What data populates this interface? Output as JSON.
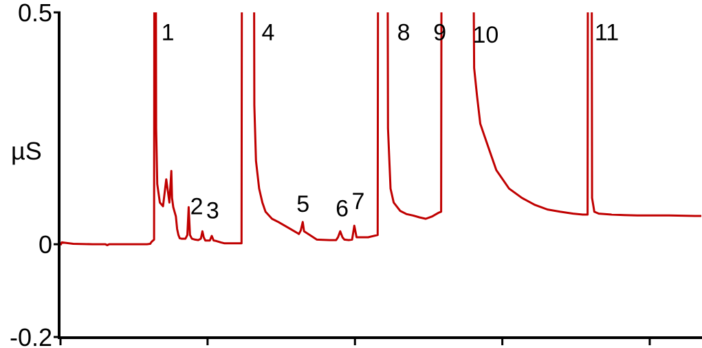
{
  "chart_data": {
    "type": "line",
    "title": "",
    "xlabel": "",
    "ylabel": "µS",
    "ylim": [
      -0.2,
      0.5
    ],
    "xlim": [
      0,
      1
    ],
    "y_ticks": [
      {
        "value": 0.5,
        "label": "0.5"
      },
      {
        "value": 0,
        "label": "0"
      },
      {
        "value": -0.2,
        "label": "-0.2"
      }
    ],
    "x_ticks": [
      0.0,
      0.2295,
      0.4595,
      0.6895,
      0.9195
    ],
    "grid": false,
    "legend": "none",
    "line_color": "#C00000",
    "axis_color": "#000000",
    "series": [
      {
        "x": [
          0.0,
          0.002,
          0.008,
          0.02,
          0.05,
          0.07,
          0.073,
          0.076,
          0.09,
          0.11,
          0.135,
          0.14,
          0.142,
          0.146,
          0.1465,
          0.1488,
          0.1493,
          0.151,
          0.155,
          0.16,
          0.165,
          0.17,
          0.173,
          0.174,
          0.176,
          0.18,
          0.182,
          0.184,
          0.186,
          0.189,
          0.195,
          0.198,
          0.2,
          0.202,
          0.205,
          0.21,
          0.215,
          0.219,
          0.2215,
          0.2235,
          0.226,
          0.233,
          0.236,
          0.239,
          0.243,
          0.248,
          0.25,
          0.256,
          0.2825,
          0.283,
          0.302,
          0.3025,
          0.305,
          0.31,
          0.315,
          0.32,
          0.33,
          0.34,
          0.35,
          0.36,
          0.365,
          0.37,
          0.372,
          0.375,
          0.378,
          0.38,
          0.4,
          0.42,
          0.43,
          0.433,
          0.4365,
          0.44,
          0.443,
          0.45,
          0.455,
          0.4585,
          0.462,
          0.48,
          0.495,
          0.4955,
          0.5105,
          0.511,
          0.515,
          0.52,
          0.53,
          0.54,
          0.55,
          0.56,
          0.57,
          0.58,
          0.59,
          0.594,
          0.5945,
          0.6445,
          0.6455,
          0.65,
          0.655,
          0.66,
          0.67,
          0.68,
          0.7,
          0.72,
          0.74,
          0.76,
          0.78,
          0.8,
          0.815,
          0.8225,
          0.823,
          0.829,
          0.8295,
          0.833,
          0.84,
          0.86,
          0.88,
          0.9,
          0.95,
          0.99,
          1.0
        ],
        "y": [
          -0.002,
          0.004,
          0.003,
          0.001,
          0.0,
          0.0,
          -0.002,
          0.0,
          0.0,
          0.0,
          0.0,
          0.001,
          0.005,
          0.01,
          0.6,
          0.6,
          0.25,
          0.13,
          0.09,
          0.082,
          0.14,
          0.09,
          0.158,
          0.1,
          0.08,
          0.06,
          0.033,
          0.02,
          0.013,
          0.012,
          0.012,
          0.02,
          0.08,
          0.02,
          0.012,
          0.01,
          0.009,
          0.012,
          0.028,
          0.015,
          0.008,
          0.008,
          0.018,
          0.008,
          0.007,
          0.005,
          0.004,
          0.002,
          0.002,
          0.6,
          0.6,
          0.3,
          0.18,
          0.12,
          0.09,
          0.07,
          0.055,
          0.048,
          0.04,
          0.032,
          0.028,
          0.024,
          0.022,
          0.03,
          0.048,
          0.028,
          0.01,
          0.009,
          0.009,
          0.015,
          0.028,
          0.015,
          0.01,
          0.009,
          0.01,
          0.04,
          0.015,
          0.015,
          0.02,
          0.6,
          0.6,
          0.25,
          0.12,
          0.09,
          0.072,
          0.065,
          0.062,
          0.058,
          0.055,
          0.06,
          0.068,
          0.07,
          0.6,
          0.6,
          0.38,
          0.32,
          0.26,
          0.24,
          0.2,
          0.16,
          0.12,
          0.1,
          0.085,
          0.075,
          0.07,
          0.066,
          0.064,
          0.064,
          0.6,
          0.6,
          0.1,
          0.07,
          0.066,
          0.064,
          0.063,
          0.062,
          0.062,
          0.061,
          0.061
        ]
      }
    ],
    "annotations": [
      {
        "text": "1",
        "x": 0.1675,
        "y": 0.44
      },
      {
        "text": "2",
        "x": 0.2125,
        "y": 0.065
      },
      {
        "text": "3",
        "x": 0.2375,
        "y": 0.056
      },
      {
        "text": "4",
        "x": 0.324,
        "y": 0.44
      },
      {
        "text": "5",
        "x": 0.3785,
        "y": 0.07
      },
      {
        "text": "6",
        "x": 0.4395,
        "y": 0.06
      },
      {
        "text": "7",
        "x": 0.4645,
        "y": 0.076
      },
      {
        "text": "8",
        "x": 0.5355,
        "y": 0.44
      },
      {
        "text": "9",
        "x": 0.592,
        "y": 0.44
      },
      {
        "text": "10",
        "x": 0.6635,
        "y": 0.435
      },
      {
        "text": "11",
        "x": 0.8525,
        "y": 0.44
      }
    ]
  }
}
